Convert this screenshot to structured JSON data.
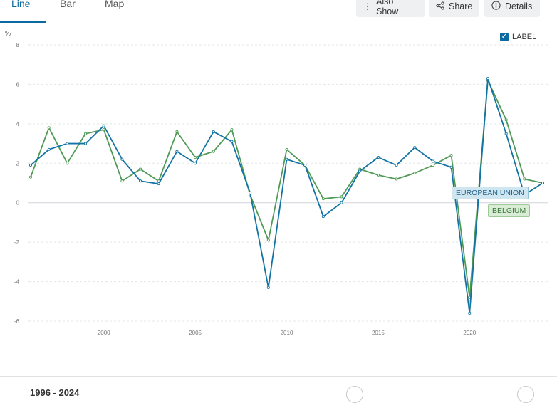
{
  "tabs": [
    {
      "label": "Line",
      "active": true
    },
    {
      "label": "Bar",
      "active": false
    },
    {
      "label": "Map",
      "active": false
    }
  ],
  "actions": {
    "also_show": {
      "label": "Also Show",
      "icon": "vertical-dots-icon"
    },
    "share": {
      "label": "Share",
      "icon": "share-icon"
    },
    "details": {
      "label": "Details",
      "icon": "info-icon"
    }
  },
  "label_toggle": {
    "label": "LABEL",
    "checked": true
  },
  "range": {
    "label": "1996 - 2024"
  },
  "colors": {
    "eu": "#1373a4",
    "belgium": "#4f9a55",
    "accent": "#0a6aa1"
  },
  "chart_data": {
    "type": "line",
    "ylabel": "%",
    "ylim": [
      -6,
      8
    ],
    "yticks": [
      8,
      6,
      4,
      2,
      0,
      -2,
      -4,
      -6
    ],
    "xlim": [
      1996,
      2024
    ],
    "xticks": [
      2000,
      2005,
      2010,
      2015,
      2020
    ],
    "grid": true,
    "x": [
      1996,
      1997,
      1998,
      1999,
      2000,
      2001,
      2002,
      2003,
      2004,
      2005,
      2006,
      2007,
      2008,
      2009,
      2010,
      2011,
      2012,
      2013,
      2014,
      2015,
      2016,
      2017,
      2018,
      2019,
      2020,
      2021,
      2022,
      2023,
      2024
    ],
    "series": [
      {
        "name": "EUROPEAN UNION",
        "color": "#1373a4",
        "values": [
          1.9,
          2.7,
          3.0,
          3.0,
          3.9,
          2.2,
          1.1,
          0.96,
          2.6,
          2.0,
          3.6,
          3.1,
          0.5,
          -4.3,
          2.2,
          1.9,
          -0.7,
          0.0,
          1.6,
          2.3,
          1.9,
          2.8,
          2.1,
          1.8,
          -5.6,
          6.3,
          3.5,
          0.4,
          1.0
        ]
      },
      {
        "name": "BELGIUM",
        "color": "#4f9a55",
        "values": [
          1.3,
          3.8,
          2.0,
          3.5,
          3.7,
          1.1,
          1.7,
          1.1,
          3.6,
          2.3,
          2.6,
          3.7,
          0.4,
          -1.9,
          2.7,
          1.9,
          0.2,
          0.3,
          1.7,
          1.4,
          1.2,
          1.5,
          1.9,
          2.4,
          -4.8,
          6.2,
          4.2,
          1.2,
          1.0
        ]
      }
    ]
  }
}
